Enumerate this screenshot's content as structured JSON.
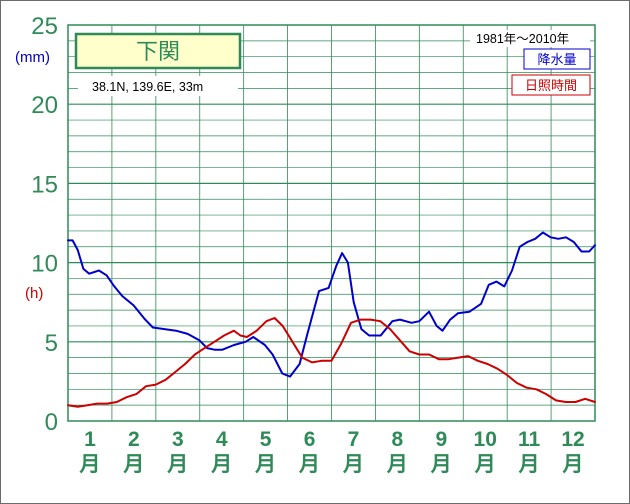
{
  "chart_data": {
    "type": "line",
    "title": "下関",
    "location": "38.1N,  139.6E,  33m",
    "period": "1981年〜2010年",
    "units": {
      "left_top": "(mm)",
      "left_bottom": "(h)"
    },
    "y_ticks": [
      "0",
      "5",
      "10",
      "15",
      "20",
      "25"
    ],
    "ylim": [
      0,
      25
    ],
    "grid": true,
    "legend_position": "top-right",
    "categories": [
      {
        "num": "1",
        "suffix": "月"
      },
      {
        "num": "2",
        "suffix": "月"
      },
      {
        "num": "3",
        "suffix": "月"
      },
      {
        "num": "4",
        "suffix": "月"
      },
      {
        "num": "5",
        "suffix": "月"
      },
      {
        "num": "6",
        "suffix": "月"
      },
      {
        "num": "7",
        "suffix": "月"
      },
      {
        "num": "8",
        "suffix": "月"
      },
      {
        "num": "9",
        "suffix": "月"
      },
      {
        "num": "10",
        "suffix": "月"
      },
      {
        "num": "11",
        "suffix": "月"
      },
      {
        "num": "12",
        "suffix": "月"
      }
    ],
    "series": [
      {
        "name": "降水量",
        "color": "#0000cc",
        "points": [
          [
            0.0,
            11.4
          ],
          [
            0.12,
            11.4
          ],
          [
            0.25,
            10.8
          ],
          [
            0.4,
            9.6
          ],
          [
            0.55,
            9.3
          ],
          [
            0.8,
            9.5
          ],
          [
            1.0,
            9.2
          ],
          [
            1.2,
            8.5
          ],
          [
            1.4,
            7.9
          ],
          [
            1.7,
            7.3
          ],
          [
            2.0,
            6.4
          ],
          [
            2.2,
            5.9
          ],
          [
            2.5,
            5.8
          ],
          [
            2.8,
            5.7
          ],
          [
            3.1,
            5.5
          ],
          [
            3.4,
            5.1
          ],
          [
            3.6,
            4.6
          ],
          [
            3.8,
            4.5
          ],
          [
            4.0,
            4.5
          ],
          [
            4.3,
            4.8
          ],
          [
            4.6,
            5.0
          ],
          [
            4.8,
            5.3
          ],
          [
            5.1,
            4.8
          ],
          [
            5.3,
            4.2
          ],
          [
            5.55,
            3.0
          ],
          [
            5.75,
            2.8
          ],
          [
            6.0,
            3.6
          ],
          [
            6.2,
            5.5
          ],
          [
            6.5,
            8.2
          ],
          [
            6.75,
            8.4
          ],
          [
            6.95,
            9.8
          ],
          [
            7.1,
            10.6
          ],
          [
            7.25,
            10.0
          ],
          [
            7.4,
            7.5
          ],
          [
            7.6,
            5.8
          ],
          [
            7.8,
            5.4
          ],
          [
            8.1,
            5.4
          ],
          [
            8.4,
            6.3
          ],
          [
            8.6,
            6.4
          ],
          [
            8.9,
            6.2
          ],
          [
            9.1,
            6.3
          ],
          [
            9.35,
            6.9
          ],
          [
            9.55,
            6.0
          ],
          [
            9.7,
            5.7
          ],
          [
            9.9,
            6.4
          ],
          [
            10.1,
            6.8
          ],
          [
            10.4,
            6.9
          ],
          [
            10.7,
            7.4
          ],
          [
            10.9,
            8.6
          ],
          [
            11.1,
            8.8
          ],
          [
            11.3,
            8.5
          ],
          [
            11.5,
            9.5
          ],
          [
            11.7,
            11.0
          ],
          [
            11.9,
            11.3
          ],
          [
            12.1,
            11.5
          ],
          [
            12.3,
            11.9
          ],
          [
            12.5,
            11.6
          ],
          [
            12.7,
            11.5
          ],
          [
            12.9,
            11.6
          ],
          [
            13.1,
            11.3
          ],
          [
            13.3,
            10.7
          ],
          [
            13.5,
            10.7
          ],
          [
            13.65,
            11.1
          ]
        ]
      },
      {
        "name": "日照時間",
        "color": "#cc0000",
        "points": [
          [
            0.0,
            1.0
          ],
          [
            0.3,
            0.9
          ],
          [
            0.6,
            1.0
          ],
          [
            0.9,
            1.1
          ],
          [
            1.2,
            1.1
          ],
          [
            1.5,
            1.2
          ],
          [
            1.8,
            1.5
          ],
          [
            2.1,
            1.7
          ],
          [
            2.4,
            2.2
          ],
          [
            2.7,
            2.3
          ],
          [
            3.0,
            2.6
          ],
          [
            3.3,
            3.1
          ],
          [
            3.6,
            3.6
          ],
          [
            3.9,
            4.2
          ],
          [
            4.2,
            4.6
          ],
          [
            4.5,
            5.0
          ],
          [
            4.8,
            5.4
          ],
          [
            5.1,
            5.7
          ],
          [
            5.3,
            5.4
          ],
          [
            5.5,
            5.3
          ],
          [
            5.8,
            5.7
          ],
          [
            6.1,
            6.3
          ],
          [
            6.35,
            6.5
          ],
          [
            6.6,
            6.0
          ],
          [
            6.9,
            5.0
          ],
          [
            7.2,
            4.0
          ],
          [
            7.5,
            3.7
          ],
          [
            7.8,
            3.8
          ],
          [
            8.1,
            3.8
          ],
          [
            8.4,
            4.9
          ],
          [
            8.7,
            6.2
          ],
          [
            9.0,
            6.4
          ],
          [
            9.3,
            6.4
          ],
          [
            9.6,
            6.3
          ],
          [
            9.9,
            5.8
          ],
          [
            10.2,
            5.1
          ],
          [
            10.5,
            4.4
          ],
          [
            10.8,
            4.2
          ],
          [
            11.1,
            4.2
          ],
          [
            11.4,
            3.9
          ],
          [
            11.7,
            3.9
          ],
          [
            12.0,
            4.0
          ],
          [
            12.3,
            4.1
          ],
          [
            12.6,
            3.8
          ],
          [
            12.9,
            3.6
          ],
          [
            13.2,
            3.3
          ],
          [
            13.5,
            2.9
          ],
          [
            13.8,
            2.4
          ],
          [
            14.1,
            2.1
          ],
          [
            14.4,
            2.0
          ],
          [
            14.7,
            1.7
          ],
          [
            15.0,
            1.3
          ],
          [
            15.3,
            1.2
          ],
          [
            15.6,
            1.2
          ],
          [
            15.9,
            1.4
          ],
          [
            16.2,
            1.2
          ],
          [
            16.2,
            1.2
          ]
        ]
      }
    ]
  }
}
